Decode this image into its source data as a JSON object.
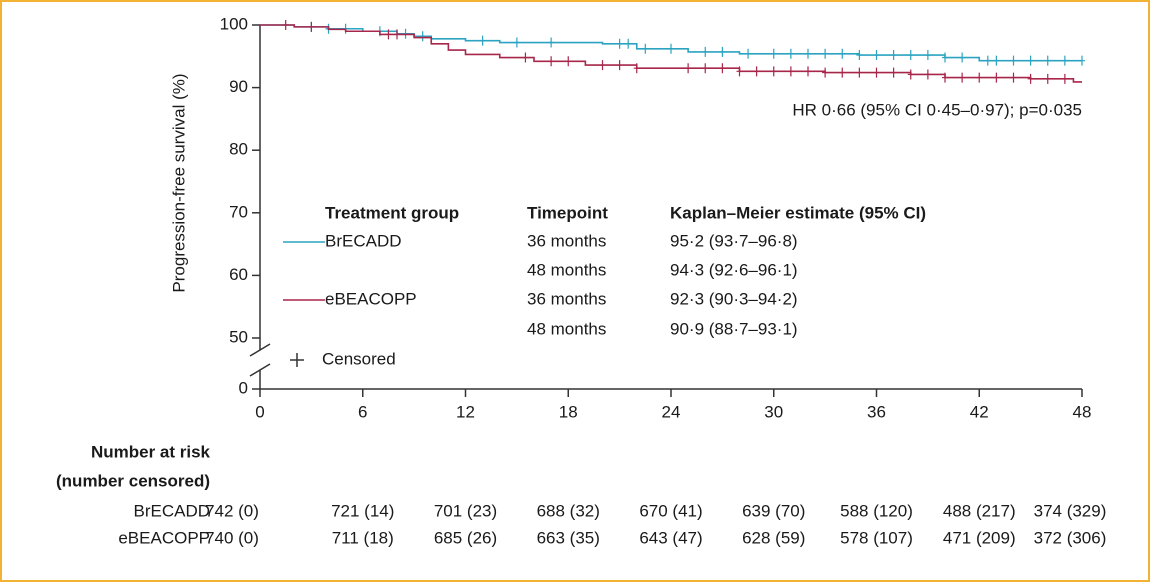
{
  "chart_data": {
    "type": "kaplan-meier",
    "y_label": "Progression-free survival (%)",
    "xlim": [
      0,
      48
    ],
    "xticks": [
      0,
      6,
      12,
      18,
      24,
      30,
      36,
      42,
      48
    ],
    "ylim": [
      0,
      100
    ],
    "yticks": [
      0,
      50,
      60,
      70,
      80,
      90,
      100
    ],
    "axis_break": [
      0,
      50
    ],
    "annotation": "HR 0·66 (95% CI 0·45–0·97); p=0·035",
    "series": [
      {
        "name": "BrECADD",
        "color": "#2ba3c1",
        "x": [
          0,
          2,
          4,
          6,
          8,
          9,
          10,
          12,
          14,
          20,
          22,
          25,
          28,
          35,
          40,
          42,
          48
        ],
        "values": [
          100,
          99.7,
          99.4,
          99,
          98.6,
          98.2,
          97.8,
          97.5,
          97.2,
          97,
          96.2,
          95.7,
          95.4,
          95.2,
          94.8,
          94.3,
          94.3
        ],
        "censored": [
          3,
          4,
          5,
          7,
          8.5,
          9.5,
          13,
          15,
          17,
          21,
          21.5,
          22.5,
          24,
          26,
          27,
          28.5,
          30,
          31,
          32,
          33,
          34,
          35,
          36,
          37,
          38,
          39,
          40,
          41,
          42.5,
          43,
          44,
          45,
          46,
          47,
          48
        ]
      },
      {
        "name": "eBEACOPP",
        "color": "#a8264a",
        "x": [
          0,
          2,
          4,
          5,
          7,
          9,
          10,
          11,
          12,
          14,
          16,
          19,
          22,
          28,
          33,
          38,
          40,
          45,
          47.5,
          48
        ],
        "values": [
          100,
          99.7,
          99.3,
          99,
          98.5,
          98,
          97,
          96,
          95.3,
          94.8,
          94.2,
          93.6,
          93.1,
          92.6,
          92.4,
          92.1,
          91.6,
          91.4,
          90.9,
          90.9
        ],
        "censored": [
          1.5,
          3,
          7.5,
          8,
          15.5,
          17,
          18,
          20,
          21,
          22,
          25,
          26,
          27,
          28,
          29,
          30,
          31,
          32,
          33,
          34,
          35,
          36,
          37,
          38,
          39,
          40,
          41,
          42,
          43,
          44,
          45,
          46,
          47
        ]
      }
    ],
    "legend_table": {
      "headers": [
        "Treatment group",
        "Timepoint",
        "Kaplan–Meier estimate (95% CI)"
      ],
      "rows": [
        [
          "BrECADD",
          "36 months",
          "95·2 (93·7–96·8)"
        ],
        [
          null,
          "48 months",
          "94·3 (92·6–96·1)"
        ],
        [
          "eBEACOPP",
          "36 months",
          "92·3 (90·3–94·2)"
        ],
        [
          null,
          "48 months",
          "90·9 (88·7–93·1)"
        ]
      ],
      "censored_label": "Censored"
    },
    "risk_table": {
      "title": "Number at risk",
      "subtitle": "(number censored)",
      "rows": [
        {
          "name": "BrECADD",
          "values": [
            "742 (0)",
            "721 (14)",
            "701 (23)",
            "688 (32)",
            "670 (41)",
            "639 (70)",
            "588 (120)",
            "488 (217)",
            "374 (329)"
          ]
        },
        {
          "name": "eBEACOPP",
          "values": [
            "740 (0)",
            "711 (18)",
            "685 (26)",
            "663 (35)",
            "643 (47)",
            "628 (59)",
            "578 (107)",
            "471 (209)",
            "372 (306)"
          ]
        }
      ]
    }
  }
}
